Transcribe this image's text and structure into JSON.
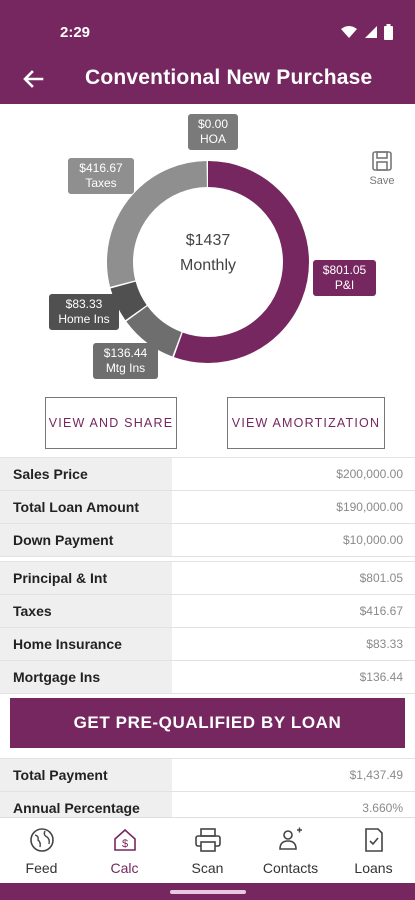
{
  "status": {
    "time": "2:29"
  },
  "header": {
    "title": "Conventional New Purchase"
  },
  "chart_data": {
    "type": "pie",
    "center_total": "$1437",
    "center_subtitle": "Monthly",
    "slices": [
      {
        "label": "P&I",
        "value": 801.05,
        "display": "$801.05",
        "color": "#76275f"
      },
      {
        "label": "Mtg Ins",
        "value": 136.44,
        "display": "$136.44",
        "color": "#6e6e6e"
      },
      {
        "label": "Home Ins",
        "value": 83.33,
        "display": "$83.33",
        "color": "#505050"
      },
      {
        "label": "Taxes",
        "value": 416.67,
        "display": "$416.67",
        "color": "#8f8f8f"
      },
      {
        "label": "HOA",
        "value": 0.0,
        "display": "$0.00",
        "color": "#7a7a7a"
      }
    ]
  },
  "save_label": "Save",
  "buttons": {
    "view_share": "VIEW AND SHARE",
    "view_amortization": "VIEW AMORTIZATION",
    "prequalify": "GET PRE-QUALIFIED BY LOAN"
  },
  "summary1": [
    {
      "label": "Sales Price",
      "value": "$200,000.00"
    },
    {
      "label": "Total Loan Amount",
      "value": "$190,000.00"
    },
    {
      "label": "Down Payment",
      "value": "$10,000.00"
    }
  ],
  "summary2": [
    {
      "label": "Principal & Int",
      "value": "$801.05"
    },
    {
      "label": "Taxes",
      "value": "$416.67"
    },
    {
      "label": "Home Insurance",
      "value": "$83.33"
    },
    {
      "label": "Mortgage Ins",
      "value": "$136.44"
    }
  ],
  "summary3": [
    {
      "label": "Total Payment",
      "value": "$1,437.49"
    },
    {
      "label": "Annual Percentage Rate",
      "value": "3.660%"
    }
  ],
  "nav": [
    {
      "label": "Feed",
      "icon": "globe-icon"
    },
    {
      "label": "Calc",
      "icon": "calc-home-icon",
      "active": true
    },
    {
      "label": "Scan",
      "icon": "printer-icon"
    },
    {
      "label": "Contacts",
      "icon": "contacts-icon"
    },
    {
      "label": "Loans",
      "icon": "document-check-icon"
    }
  ],
  "colors": {
    "brand": "#76275f"
  }
}
